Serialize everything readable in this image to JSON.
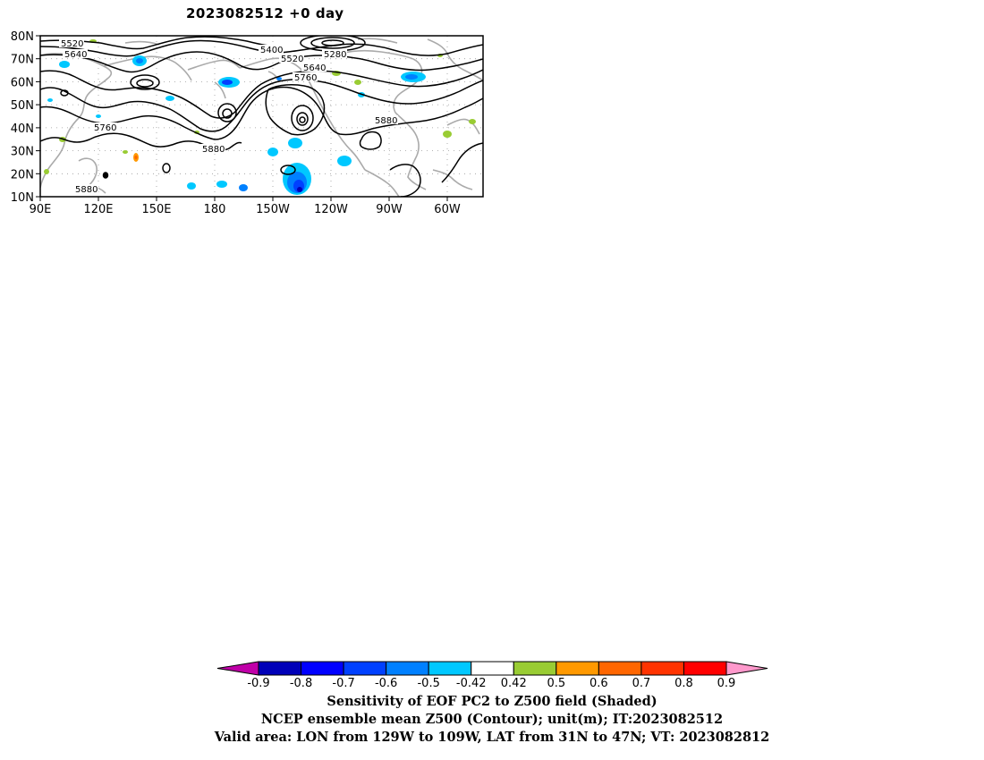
{
  "title": "2023082512  +0 day",
  "map": {
    "lat_labels": [
      "80N",
      "70N",
      "60N",
      "50N",
      "40N",
      "30N",
      "20N",
      "10N"
    ],
    "lon_labels": [
      "90E",
      "120E",
      "150E",
      "180",
      "150W",
      "120W",
      "90W",
      "60W"
    ],
    "contour_labels": [
      "5520",
      "5640",
      "5400",
      "5280",
      "5520",
      "5640",
      "5760",
      "5760",
      "5880",
      "5880",
      "5880"
    ],
    "colors": {
      "contour": "#000000",
      "coastline": "#a8a8a8",
      "grid": "#999999"
    }
  },
  "colorbar": {
    "tick_labels": [
      "-0.9",
      "-0.8",
      "-0.7",
      "-0.6",
      "-0.5",
      "-0.42",
      "0.42",
      "0.5",
      "0.6",
      "0.7",
      "0.8",
      "0.9"
    ],
    "colors": [
      "#c000a8",
      "#0000b8",
      "#0000ff",
      "#0040ff",
      "#0080ff",
      "#00c8ff",
      "#ffffff",
      "#99cc33",
      "#ff9900",
      "#ff6600",
      "#ff3300",
      "#ff0000",
      "#ff99cc"
    ]
  },
  "captions": {
    "line1": "Sensitivity of EOF PC2 to Z500 field (Shaded)",
    "line2": "NCEP ensemble mean Z500 (Contour); unit(m); IT:2023082512",
    "line3": "Valid area: LON from 129W to 109W, LAT from 31N to 47N; VT: 2023082812"
  }
}
